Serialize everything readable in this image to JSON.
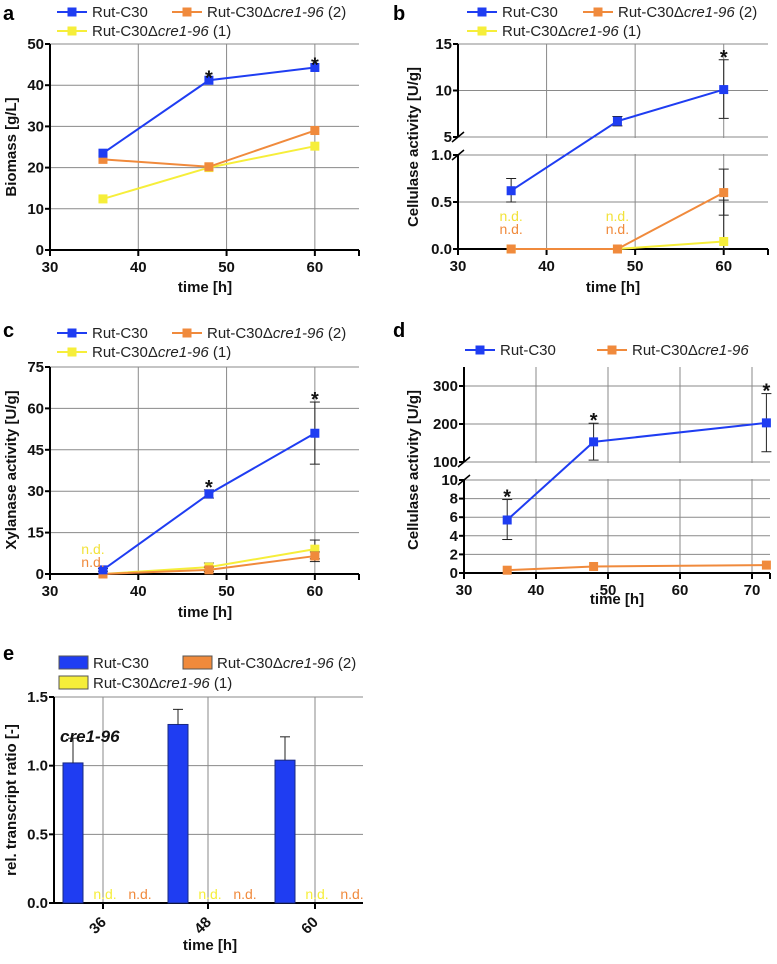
{
  "chart_data": [
    {
      "panel": "a",
      "type": "line",
      "xlabel": "time [h]",
      "ylabel": "Biomass [g/L]",
      "xlim": [
        30,
        65
      ],
      "ylim": [
        0,
        50
      ],
      "y_segments": [
        [
          0,
          50
        ]
      ],
      "xticks": [
        "30",
        "40",
        "50",
        "60"
      ],
      "yticks": [
        "0",
        "10",
        "20",
        "30",
        "40",
        "50"
      ],
      "grid": true,
      "legend_placement": "top",
      "series": [
        {
          "name": "Rut-C30",
          "color": "#1f3df2",
          "x": [
            36,
            48,
            60
          ],
          "y": [
            23.5,
            41.2,
            44.3
          ]
        },
        {
          "name": "Rut-C30Δcre1-96 (2)",
          "color": "#f08a3c",
          "x": [
            36,
            48,
            60
          ],
          "y": [
            22.0,
            20.2,
            29.0
          ]
        },
        {
          "name": "Rut-C30Δcre1-96 (1)",
          "color": "#f6ee3a",
          "x": [
            36,
            48,
            60
          ],
          "y": [
            12.4,
            20.0,
            25.2
          ]
        }
      ],
      "significance": [
        {
          "x": 48,
          "label": "*"
        },
        {
          "x": 60,
          "label": "*"
        }
      ]
    },
    {
      "panel": "b",
      "type": "line",
      "xlabel": "time [h]",
      "ylabel": "Cellulase activity [U/g]",
      "xlim": [
        30,
        65
      ],
      "ylim": [
        0,
        15
      ],
      "y_segments": [
        [
          0,
          1
        ],
        [
          5,
          15
        ]
      ],
      "xticks": [
        "30",
        "40",
        "50",
        "60"
      ],
      "yticks": [
        "0.0",
        "0.5",
        "1.0",
        "5",
        "10",
        "15"
      ],
      "grid": true,
      "legend_placement": "top",
      "series": [
        {
          "name": "Rut-C30",
          "color": "#1f3df2",
          "x": [
            36,
            48,
            60
          ],
          "y": [
            0.62,
            6.7,
            10.1
          ],
          "err_low": [
            0.5,
            6.2,
            7.0
          ],
          "err_high": [
            0.75,
            7.2,
            13.3
          ]
        },
        {
          "name": "Rut-C30Δcre1-96 (2)",
          "color": "#f08a3c",
          "x": [
            36,
            48,
            60
          ],
          "y": [
            0,
            0,
            0.6
          ],
          "err_low": [
            0,
            0,
            0.36
          ],
          "err_high": [
            0,
            0,
            0.85
          ],
          "nd_x": [
            36,
            48
          ],
          "nd_label": "n.d."
        },
        {
          "name": "Rut-C30Δcre1-96 (1)",
          "color": "#f6ee3a",
          "x": [
            36,
            48,
            60
          ],
          "y": [
            0,
            0,
            0.08
          ],
          "err_low": [
            0,
            0,
            0.0
          ],
          "err_high": [
            0,
            0,
            0.52
          ],
          "nd_x": [
            36,
            48
          ],
          "nd_label": "n.d."
        }
      ],
      "significance": [
        {
          "x": 60,
          "label": "*"
        }
      ]
    },
    {
      "panel": "c",
      "type": "line",
      "xlabel": "time [h]",
      "ylabel": "Xylanase activity [U/g]",
      "xlim": [
        30,
        65
      ],
      "ylim": [
        0,
        75
      ],
      "y_segments": [
        [
          0,
          75
        ]
      ],
      "xticks": [
        "30",
        "40",
        "50",
        "60"
      ],
      "yticks": [
        "0",
        "15",
        "30",
        "45",
        "60",
        "75"
      ],
      "grid": true,
      "legend_placement": "top",
      "series": [
        {
          "name": "Rut-C30",
          "color": "#1f3df2",
          "x": [
            36,
            48,
            60
          ],
          "y": [
            1.5,
            29.0,
            51.0
          ],
          "err_low": [
            1.0,
            27.5,
            39.8
          ],
          "err_high": [
            2.0,
            30.5,
            62.3
          ]
        },
        {
          "name": "Rut-C30Δcre1-96 (2)",
          "color": "#f08a3c",
          "x": [
            36,
            48,
            60
          ],
          "y": [
            0,
            1.5,
            6.5
          ],
          "err_low": [
            0,
            0.8,
            4.5
          ],
          "err_high": [
            0,
            2.5,
            8.0
          ],
          "nd_x": [
            36
          ],
          "nd_label": "n.d."
        },
        {
          "name": "Rut-C30Δcre1-96 (1)",
          "color": "#f6ee3a",
          "x": [
            36,
            48,
            60
          ],
          "y": [
            0,
            2.5,
            9.0
          ],
          "err_low": [
            0,
            1.0,
            5.5
          ],
          "err_high": [
            0,
            4.0,
            12.3
          ],
          "nd_x": [
            36
          ],
          "nd_label": "n.d."
        }
      ],
      "significance": [
        {
          "x": 48,
          "label": "*"
        },
        {
          "x": 60,
          "label": "*"
        }
      ]
    },
    {
      "panel": "d",
      "type": "line",
      "xlabel": "time [h]",
      "ylabel": "Cellulase activity [U/g]",
      "xlim": [
        30,
        72.5
      ],
      "ylim": [
        0,
        350
      ],
      "y_segments": [
        [
          0,
          10
        ],
        [
          100,
          350
        ]
      ],
      "xticks": [
        "30",
        "40",
        "50",
        "60",
        "70"
      ],
      "yticks": [
        "0",
        "2",
        "4",
        "6",
        "8",
        "10",
        "100",
        "200",
        "300"
      ],
      "grid": true,
      "legend_placement": "top",
      "series": [
        {
          "name": "Rut-C30",
          "color": "#1f3df2",
          "x": [
            36,
            48,
            72
          ],
          "y": [
            5.7,
            153,
            203
          ],
          "err_low": [
            3.6,
            105,
            127
          ],
          "err_high": [
            7.9,
            202,
            280
          ]
        },
        {
          "name": "Rut-C30Δcre1-96",
          "color": "#f08a3c",
          "x": [
            36,
            48,
            72
          ],
          "y": [
            0.3,
            0.7,
            0.85
          ]
        }
      ],
      "significance": [
        {
          "x": 36,
          "label": "*"
        },
        {
          "x": 48,
          "label": "*"
        },
        {
          "x": 72,
          "label": "*"
        }
      ]
    },
    {
      "panel": "e",
      "type": "bar",
      "xlabel": "time [h]",
      "ylabel": "rel. transcript ratio [-]",
      "inset_label": "cre1-96",
      "categories": [
        "36",
        "48",
        "60"
      ],
      "ylim": [
        0,
        1.5
      ],
      "y_segments": [
        [
          0,
          1.5
        ]
      ],
      "yticks": [
        "0.0",
        "0.5",
        "1.0",
        "1.5"
      ],
      "grid": true,
      "legend_placement": "top",
      "series": [
        {
          "name": "Rut-C30",
          "color": "#1f3df2",
          "values": [
            1.02,
            1.3,
            1.04
          ],
          "err_high": [
            1.2,
            1.41,
            1.21
          ]
        },
        {
          "name": "Rut-C30Δcre1-96 (2)",
          "color": "#f08a3c",
          "values": [
            0,
            0,
            0
          ],
          "nd_label": "n.d."
        },
        {
          "name": "Rut-C30Δcre1-96 (1)",
          "color": "#f6ee3a",
          "values": [
            0,
            0,
            0
          ],
          "nd_label": "n.d."
        }
      ]
    }
  ]
}
